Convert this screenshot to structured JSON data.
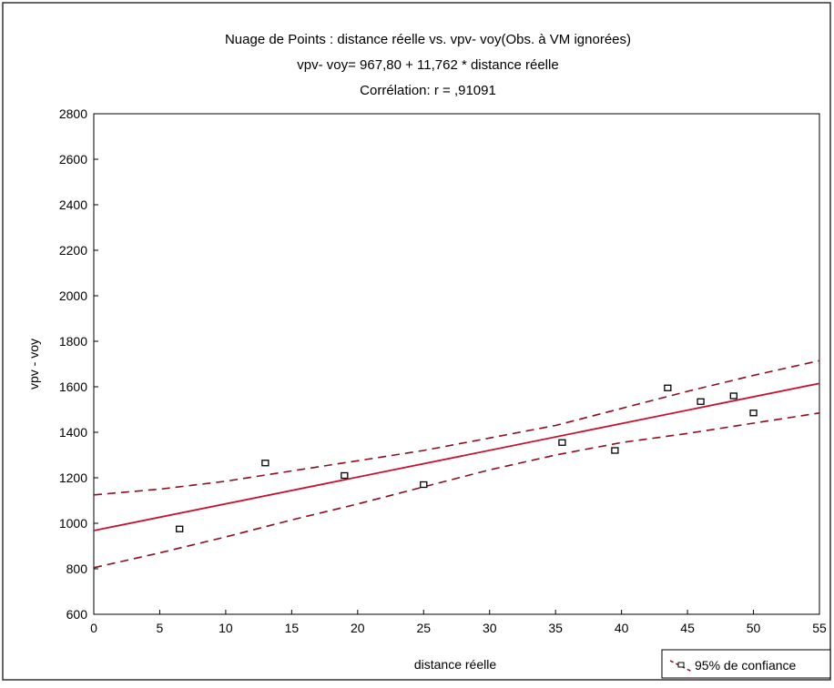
{
  "chart_data": {
    "type": "scatter",
    "title": "Nuage de Points : distance réelle vs. vpv- voy(Obs. à VM ignorées)",
    "subtitle_lines": [
      "vpv- voy= 967,80 + 11,762 * distance réelle",
      "Corrélation: r = ,91091"
    ],
    "xlabel": "distance réelle",
    "ylabel": "vpv - voy",
    "xlim": [
      0,
      55
    ],
    "ylim": [
      600,
      2800
    ],
    "x_ticks": [
      0,
      5,
      10,
      15,
      20,
      25,
      30,
      35,
      40,
      45,
      50,
      55
    ],
    "y_ticks": [
      600,
      800,
      1000,
      1200,
      1400,
      1600,
      1800,
      2000,
      2200,
      2400,
      2600,
      2800
    ],
    "grid": false,
    "legend_position": "bottom-right",
    "legend_label": "95% de confiance",
    "points": [
      {
        "x": 6.5,
        "y": 975
      },
      {
        "x": 13,
        "y": 1265
      },
      {
        "x": 19,
        "y": 1210
      },
      {
        "x": 25,
        "y": 1170
      },
      {
        "x": 35.5,
        "y": 1355
      },
      {
        "x": 39.5,
        "y": 1320
      },
      {
        "x": 43.5,
        "y": 1595
      },
      {
        "x": 46,
        "y": 1535
      },
      {
        "x": 48.5,
        "y": 1560
      },
      {
        "x": 50,
        "y": 1485
      }
    ],
    "regression": {
      "intercept": 967.8,
      "slope": 11.762
    },
    "confidence_upper": [
      {
        "x": 0,
        "y": 1125
      },
      {
        "x": 5,
        "y": 1150
      },
      {
        "x": 10,
        "y": 1185
      },
      {
        "x": 15,
        "y": 1230
      },
      {
        "x": 20,
        "y": 1275
      },
      {
        "x": 25,
        "y": 1320
      },
      {
        "x": 30,
        "y": 1375
      },
      {
        "x": 35,
        "y": 1430
      },
      {
        "x": 40,
        "y": 1505
      },
      {
        "x": 45,
        "y": 1580
      },
      {
        "x": 50,
        "y": 1650
      },
      {
        "x": 55,
        "y": 1715
      }
    ],
    "confidence_lower": [
      {
        "x": 0,
        "y": 805
      },
      {
        "x": 5,
        "y": 870
      },
      {
        "x": 10,
        "y": 940
      },
      {
        "x": 15,
        "y": 1015
      },
      {
        "x": 20,
        "y": 1085
      },
      {
        "x": 25,
        "y": 1160
      },
      {
        "x": 30,
        "y": 1235
      },
      {
        "x": 35,
        "y": 1300
      },
      {
        "x": 40,
        "y": 1355
      },
      {
        "x": 45,
        "y": 1395
      },
      {
        "x": 50,
        "y": 1440
      },
      {
        "x": 55,
        "y": 1485
      }
    ],
    "colors": {
      "regression": "#c8102e",
      "confidence": "#8b0d1e",
      "points": "#000000",
      "axes": "#000000",
      "frame": "#333333"
    }
  }
}
